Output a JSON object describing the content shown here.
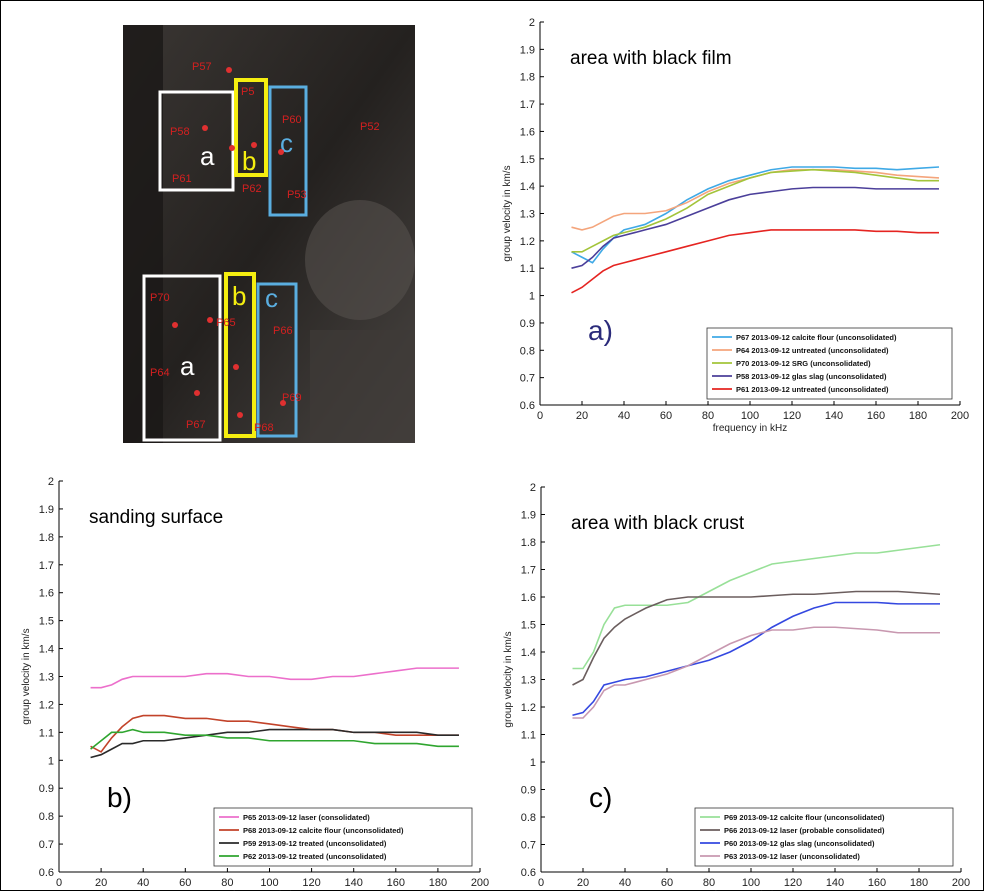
{
  "photo": {
    "labels": [
      "P57",
      "P58",
      "P5",
      "P61",
      "P62",
      "P60",
      "P53",
      "P52",
      "P70",
      "P65",
      "P66",
      "P64",
      "P67",
      "P68",
      "P69"
    ],
    "letters": [
      "a",
      "b",
      "c",
      "a",
      "b",
      "c"
    ]
  },
  "chart_data": [
    {
      "type": "line",
      "title": "area with black film",
      "panel_label": "a)",
      "xlabel": "frequency in kHz",
      "ylabel": "group velocity in km/s",
      "x": [
        15,
        20,
        25,
        30,
        35,
        40,
        50,
        60,
        70,
        80,
        90,
        100,
        110,
        120,
        130,
        140,
        150,
        160,
        170,
        180,
        190
      ],
      "xlim": [
        0,
        200
      ],
      "xticks": [
        0,
        20,
        40,
        60,
        80,
        100,
        120,
        140,
        160,
        180,
        200
      ],
      "ylim": [
        0.6,
        2
      ],
      "yticks": [
        0.6,
        0.7,
        0.8,
        0.9,
        1,
        1.1,
        1.2,
        1.3,
        1.4,
        1.5,
        1.6,
        1.7,
        1.8,
        1.9,
        2
      ],
      "legend": "lower right",
      "series": [
        {
          "name": "P67 2013-09-12 calcite flour (unconsolidated)",
          "color": "#3fa9e6",
          "values": [
            1.16,
            1.14,
            1.12,
            1.17,
            1.21,
            1.24,
            1.26,
            1.3,
            1.35,
            1.39,
            1.42,
            1.44,
            1.46,
            1.47,
            1.47,
            1.47,
            1.465,
            1.465,
            1.46,
            1.465,
            1.47
          ]
        },
        {
          "name": "P64 2013-09-12 untreated (unconsolidated)",
          "color": "#f4a57c",
          "values": [
            1.25,
            1.24,
            1.25,
            1.27,
            1.29,
            1.3,
            1.3,
            1.31,
            1.34,
            1.38,
            1.41,
            1.43,
            1.45,
            1.46,
            1.46,
            1.46,
            1.455,
            1.45,
            1.44,
            1.435,
            1.43
          ]
        },
        {
          "name": "P70 2013-09-12 SRG (unconsolidated)",
          "color": "#a3c43a",
          "values": [
            1.16,
            1.16,
            1.18,
            1.2,
            1.22,
            1.23,
            1.25,
            1.28,
            1.32,
            1.37,
            1.4,
            1.43,
            1.45,
            1.455,
            1.46,
            1.455,
            1.45,
            1.44,
            1.43,
            1.42,
            1.42
          ]
        },
        {
          "name": "P58 2013-09-12 glas slag (unconsolidated)",
          "color": "#4b3f9a",
          "values": [
            1.1,
            1.11,
            1.14,
            1.18,
            1.21,
            1.22,
            1.24,
            1.26,
            1.29,
            1.32,
            1.35,
            1.37,
            1.38,
            1.39,
            1.395,
            1.395,
            1.395,
            1.39,
            1.39,
            1.39,
            1.39
          ]
        },
        {
          "name": "P61 2013-09-12 untreated (unconsolidated)",
          "color": "#e52421",
          "values": [
            1.01,
            1.03,
            1.06,
            1.09,
            1.11,
            1.12,
            1.14,
            1.16,
            1.18,
            1.2,
            1.22,
            1.23,
            1.24,
            1.24,
            1.24,
            1.24,
            1.24,
            1.235,
            1.235,
            1.23,
            1.23
          ]
        }
      ]
    },
    {
      "type": "line",
      "title": "sanding surface",
      "panel_label": "b)",
      "xlabel": "frequency in kHz",
      "ylabel": "group velocity in km/s",
      "x": [
        15,
        20,
        25,
        30,
        35,
        40,
        50,
        60,
        70,
        80,
        90,
        100,
        110,
        120,
        130,
        140,
        150,
        160,
        170,
        180,
        190
      ],
      "xlim": [
        0,
        200
      ],
      "xticks": [
        0,
        20,
        40,
        60,
        80,
        100,
        120,
        140,
        160,
        180,
        200
      ],
      "ylim": [
        0.6,
        2
      ],
      "yticks": [
        0.6,
        0.7,
        0.8,
        0.9,
        1,
        1.1,
        1.2,
        1.3,
        1.4,
        1.5,
        1.6,
        1.7,
        1.8,
        1.9,
        2
      ],
      "legend": "lower right",
      "series": [
        {
          "name": "P65 2013-09-12 laser (consolidated)",
          "color": "#ec6fcb",
          "values": [
            1.26,
            1.26,
            1.27,
            1.29,
            1.3,
            1.3,
            1.3,
            1.3,
            1.31,
            1.31,
            1.3,
            1.3,
            1.29,
            1.29,
            1.3,
            1.3,
            1.31,
            1.32,
            1.33,
            1.33,
            1.33
          ]
        },
        {
          "name": "P68 2013-09-12 calcite flour (unconsolidated)",
          "color": "#c2432a",
          "values": [
            1.05,
            1.03,
            1.08,
            1.12,
            1.15,
            1.16,
            1.16,
            1.15,
            1.15,
            1.14,
            1.14,
            1.13,
            1.12,
            1.11,
            1.11,
            1.1,
            1.1,
            1.09,
            1.09,
            1.09,
            1.09
          ]
        },
        {
          "name": "P59 2913-09-12 treated (unconsolidated)",
          "color": "#2a2a2a",
          "values": [
            1.01,
            1.02,
            1.04,
            1.06,
            1.06,
            1.07,
            1.07,
            1.08,
            1.09,
            1.1,
            1.1,
            1.11,
            1.11,
            1.11,
            1.11,
            1.1,
            1.1,
            1.1,
            1.1,
            1.09,
            1.09
          ]
        },
        {
          "name": "P62 2013-09-12 treated (unconsolidated)",
          "color": "#2fa52f",
          "values": [
            1.04,
            1.07,
            1.1,
            1.1,
            1.11,
            1.1,
            1.1,
            1.09,
            1.09,
            1.08,
            1.08,
            1.07,
            1.07,
            1.07,
            1.07,
            1.07,
            1.06,
            1.06,
            1.06,
            1.05,
            1.05
          ]
        }
      ]
    },
    {
      "type": "line",
      "title": "area with black crust",
      "panel_label": "c)",
      "xlabel": "frequency in kHz",
      "ylabel": "group velocity in km/s",
      "x": [
        15,
        20,
        25,
        30,
        35,
        40,
        50,
        60,
        70,
        80,
        90,
        100,
        110,
        120,
        130,
        140,
        150,
        160,
        170,
        180,
        190
      ],
      "xlim": [
        0,
        200
      ],
      "xticks": [
        0,
        20,
        40,
        60,
        80,
        100,
        120,
        140,
        160,
        180,
        200
      ],
      "ylim": [
        0.6,
        2
      ],
      "yticks": [
        0.6,
        0.7,
        0.8,
        0.9,
        1,
        1.1,
        1.2,
        1.3,
        1.4,
        1.5,
        1.6,
        1.7,
        1.8,
        1.9,
        2
      ],
      "legend": "lower right",
      "series": [
        {
          "name": "P69 2013-09-12 calcite flour (unconsolidated)",
          "color": "#98e098",
          "values": [
            1.34,
            1.34,
            1.4,
            1.5,
            1.56,
            1.57,
            1.57,
            1.57,
            1.58,
            1.62,
            1.66,
            1.69,
            1.72,
            1.73,
            1.74,
            1.75,
            1.76,
            1.76,
            1.77,
            1.78,
            1.79
          ]
        },
        {
          "name": "P66 2013-09-12 laser (probable consolidated)",
          "color": "#6b5e5e",
          "values": [
            1.28,
            1.3,
            1.38,
            1.45,
            1.49,
            1.52,
            1.56,
            1.59,
            1.6,
            1.6,
            1.6,
            1.6,
            1.605,
            1.61,
            1.61,
            1.615,
            1.62,
            1.62,
            1.62,
            1.615,
            1.61
          ]
        },
        {
          "name": "P60 2013-09-12 glas slag (unconsolidated)",
          "color": "#3448e0",
          "values": [
            1.17,
            1.18,
            1.22,
            1.28,
            1.29,
            1.3,
            1.31,
            1.33,
            1.35,
            1.37,
            1.4,
            1.44,
            1.49,
            1.53,
            1.56,
            1.58,
            1.58,
            1.58,
            1.575,
            1.575,
            1.575
          ]
        },
        {
          "name": "P63 2013-09-12 laser (unconsolidated)",
          "color": "#c898b0",
          "values": [
            1.16,
            1.16,
            1.2,
            1.26,
            1.28,
            1.28,
            1.3,
            1.32,
            1.35,
            1.39,
            1.43,
            1.46,
            1.48,
            1.48,
            1.49,
            1.49,
            1.485,
            1.48,
            1.47,
            1.47,
            1.47
          ]
        }
      ]
    }
  ]
}
